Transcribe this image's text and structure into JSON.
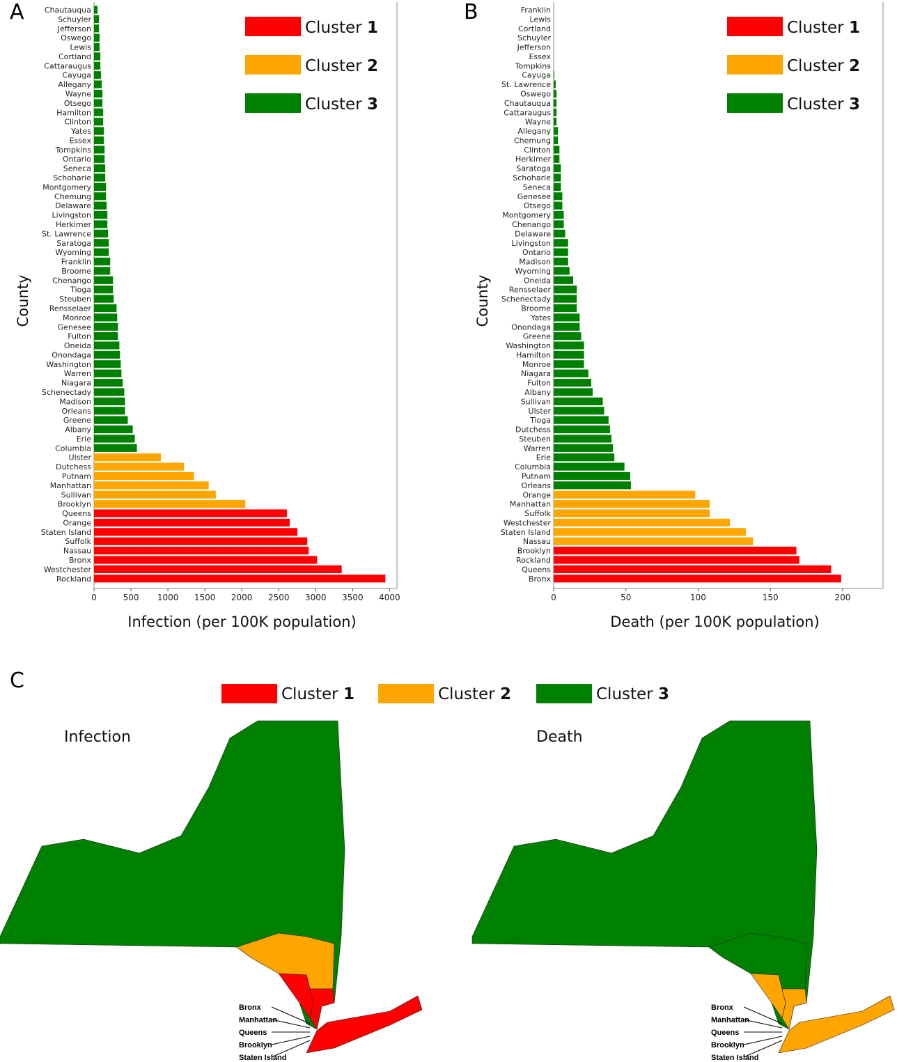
{
  "panel_labels": [
    "A",
    "B",
    "C"
  ],
  "colors": {
    "cluster1": "#ff0000",
    "cluster2": "#ffa500",
    "cluster3": "#008000"
  },
  "legend": [
    {
      "prefix": "Cluster ",
      "num": "1",
      "color": "#ff0000"
    },
    {
      "prefix": "Cluster ",
      "num": "2",
      "color": "#ffa500"
    },
    {
      "prefix": "Cluster ",
      "num": "3",
      "color": "#008000"
    }
  ],
  "chart_data": [
    {
      "type": "bar",
      "orientation": "horizontal",
      "xlabel": "Infection (per 100K population)",
      "ylabel": "County",
      "xlim": [
        0,
        4100
      ],
      "xticks": [
        0,
        500,
        1000,
        1500,
        2000,
        2500,
        3000,
        3500,
        4000
      ],
      "legend_placement": "top-right",
      "categories": [
        "Chautauqua",
        "Schuyler",
        "Jefferson",
        "Oswego",
        "Lewis",
        "Cortland",
        "Cattaraugus",
        "Cayuga",
        "Allegany",
        "Wayne",
        "Otsego",
        "Hamilton",
        "Clinton",
        "Yates",
        "Essex",
        "Tompkins",
        "Ontario",
        "Seneca",
        "Schoharie",
        "Montgomery",
        "Chemung",
        "Delaware",
        "Livingston",
        "Herkimer",
        "St. Lawrence",
        "Saratoga",
        "Wyoming",
        "Franklin",
        "Broome",
        "Chenango",
        "Tioga",
        "Steuben",
        "Rensselaer",
        "Monroe",
        "Genesee",
        "Fulton",
        "Oneida",
        "Onondaga",
        "Washington",
        "Warren",
        "Niagara",
        "Schenectady",
        "Madison",
        "Orleans",
        "Greene",
        "Albany",
        "Erie",
        "Columbia",
        "Ulster",
        "Dutchess",
        "Putnam",
        "Manhattan",
        "Sullivan",
        "Brooklyn",
        "Queens",
        "Orange",
        "Staten Island",
        "Suffolk",
        "Nassau",
        "Bronx",
        "Westchester",
        "Rockland"
      ],
      "values": [
        48,
        67,
        67,
        76,
        76,
        86,
        86,
        95,
        105,
        114,
        114,
        124,
        124,
        133,
        133,
        143,
        143,
        152,
        152,
        162,
        162,
        171,
        181,
        181,
        190,
        200,
        200,
        219,
        219,
        257,
        257,
        267,
        305,
        314,
        324,
        324,
        343,
        352,
        362,
        371,
        390,
        410,
        419,
        419,
        457,
        524,
        552,
        581,
        905,
        1219,
        1352,
        1552,
        1648,
        2048,
        2610,
        2648,
        2752,
        2886,
        2905,
        3019,
        3352,
        3943
      ],
      "clusters": [
        3,
        3,
        3,
        3,
        3,
        3,
        3,
        3,
        3,
        3,
        3,
        3,
        3,
        3,
        3,
        3,
        3,
        3,
        3,
        3,
        3,
        3,
        3,
        3,
        3,
        3,
        3,
        3,
        3,
        3,
        3,
        3,
        3,
        3,
        3,
        3,
        3,
        3,
        3,
        3,
        3,
        3,
        3,
        3,
        3,
        3,
        3,
        3,
        2,
        2,
        2,
        2,
        2,
        2,
        1,
        1,
        1,
        1,
        1,
        1,
        1,
        1
      ]
    },
    {
      "type": "bar",
      "orientation": "horizontal",
      "xlabel": "Death (per 100K population)",
      "ylabel": "County",
      "xlim": [
        0,
        228
      ],
      "xticks": [
        0,
        50,
        100,
        150,
        200
      ],
      "legend_placement": "top-right",
      "categories": [
        "Franklin",
        "Lewis",
        "Cortland",
        "Schuyler",
        "Jefferson",
        "Essex",
        "Tompkins",
        "Cayuga",
        "St. Lawrence",
        "Oswego",
        "Chautauqua",
        "Cattaraugus",
        "Wayne",
        "Allegany",
        "Chemung",
        "Clinton",
        "Herkimer",
        "Saratoga",
        "Schoharie",
        "Seneca",
        "Genesee",
        "Otsego",
        "Montgomery",
        "Chenango",
        "Delaware",
        "Livingston",
        "Ontario",
        "Madison",
        "Wyoming",
        "Oneida",
        "Rensselaer",
        "Schenectady",
        "Broome",
        "Yates",
        "Onondaga",
        "Greene",
        "Washington",
        "Hamilton",
        "Monroe",
        "Niagara",
        "Fulton",
        "Albany",
        "Sullivan",
        "Ulster",
        "Tioga",
        "Dutchess",
        "Steuben",
        "Warren",
        "Erie",
        "Columbia",
        "Putnam",
        "Orleans",
        "Orange",
        "Manhattan",
        "Suffolk",
        "Westchester",
        "Staten Island",
        "Nassau",
        "Brooklyn",
        "Rockland",
        "Queens",
        "Bronx"
      ],
      "values": [
        0,
        0,
        0,
        0,
        0,
        0,
        0,
        0.5,
        1.4,
        2,
        2,
        2,
        2,
        3,
        3,
        4,
        4,
        5,
        5,
        5,
        6,
        6,
        7,
        7,
        8,
        10,
        10,
        10,
        11,
        13.5,
        16,
        16,
        16,
        18,
        18,
        19,
        21,
        21,
        21,
        24,
        26,
        27,
        34,
        35,
        38,
        39,
        40,
        41,
        42,
        49,
        53,
        53.5,
        98,
        108,
        108,
        122,
        133,
        138,
        168,
        170,
        192,
        199
      ],
      "clusters": [
        3,
        3,
        3,
        3,
        3,
        3,
        3,
        3,
        3,
        3,
        3,
        3,
        3,
        3,
        3,
        3,
        3,
        3,
        3,
        3,
        3,
        3,
        3,
        3,
        3,
        3,
        3,
        3,
        3,
        3,
        3,
        3,
        3,
        3,
        3,
        3,
        3,
        3,
        3,
        3,
        3,
        3,
        3,
        3,
        3,
        3,
        3,
        3,
        3,
        3,
        3,
        3,
        2,
        2,
        2,
        2,
        2,
        2,
        1,
        1,
        1,
        1
      ]
    }
  ],
  "maps": [
    {
      "title": "Infection"
    },
    {
      "title": "Death"
    }
  ],
  "callouts": [
    "Bronx",
    "Manhattan",
    "Queens",
    "Brooklyn",
    "Staten Island"
  ]
}
